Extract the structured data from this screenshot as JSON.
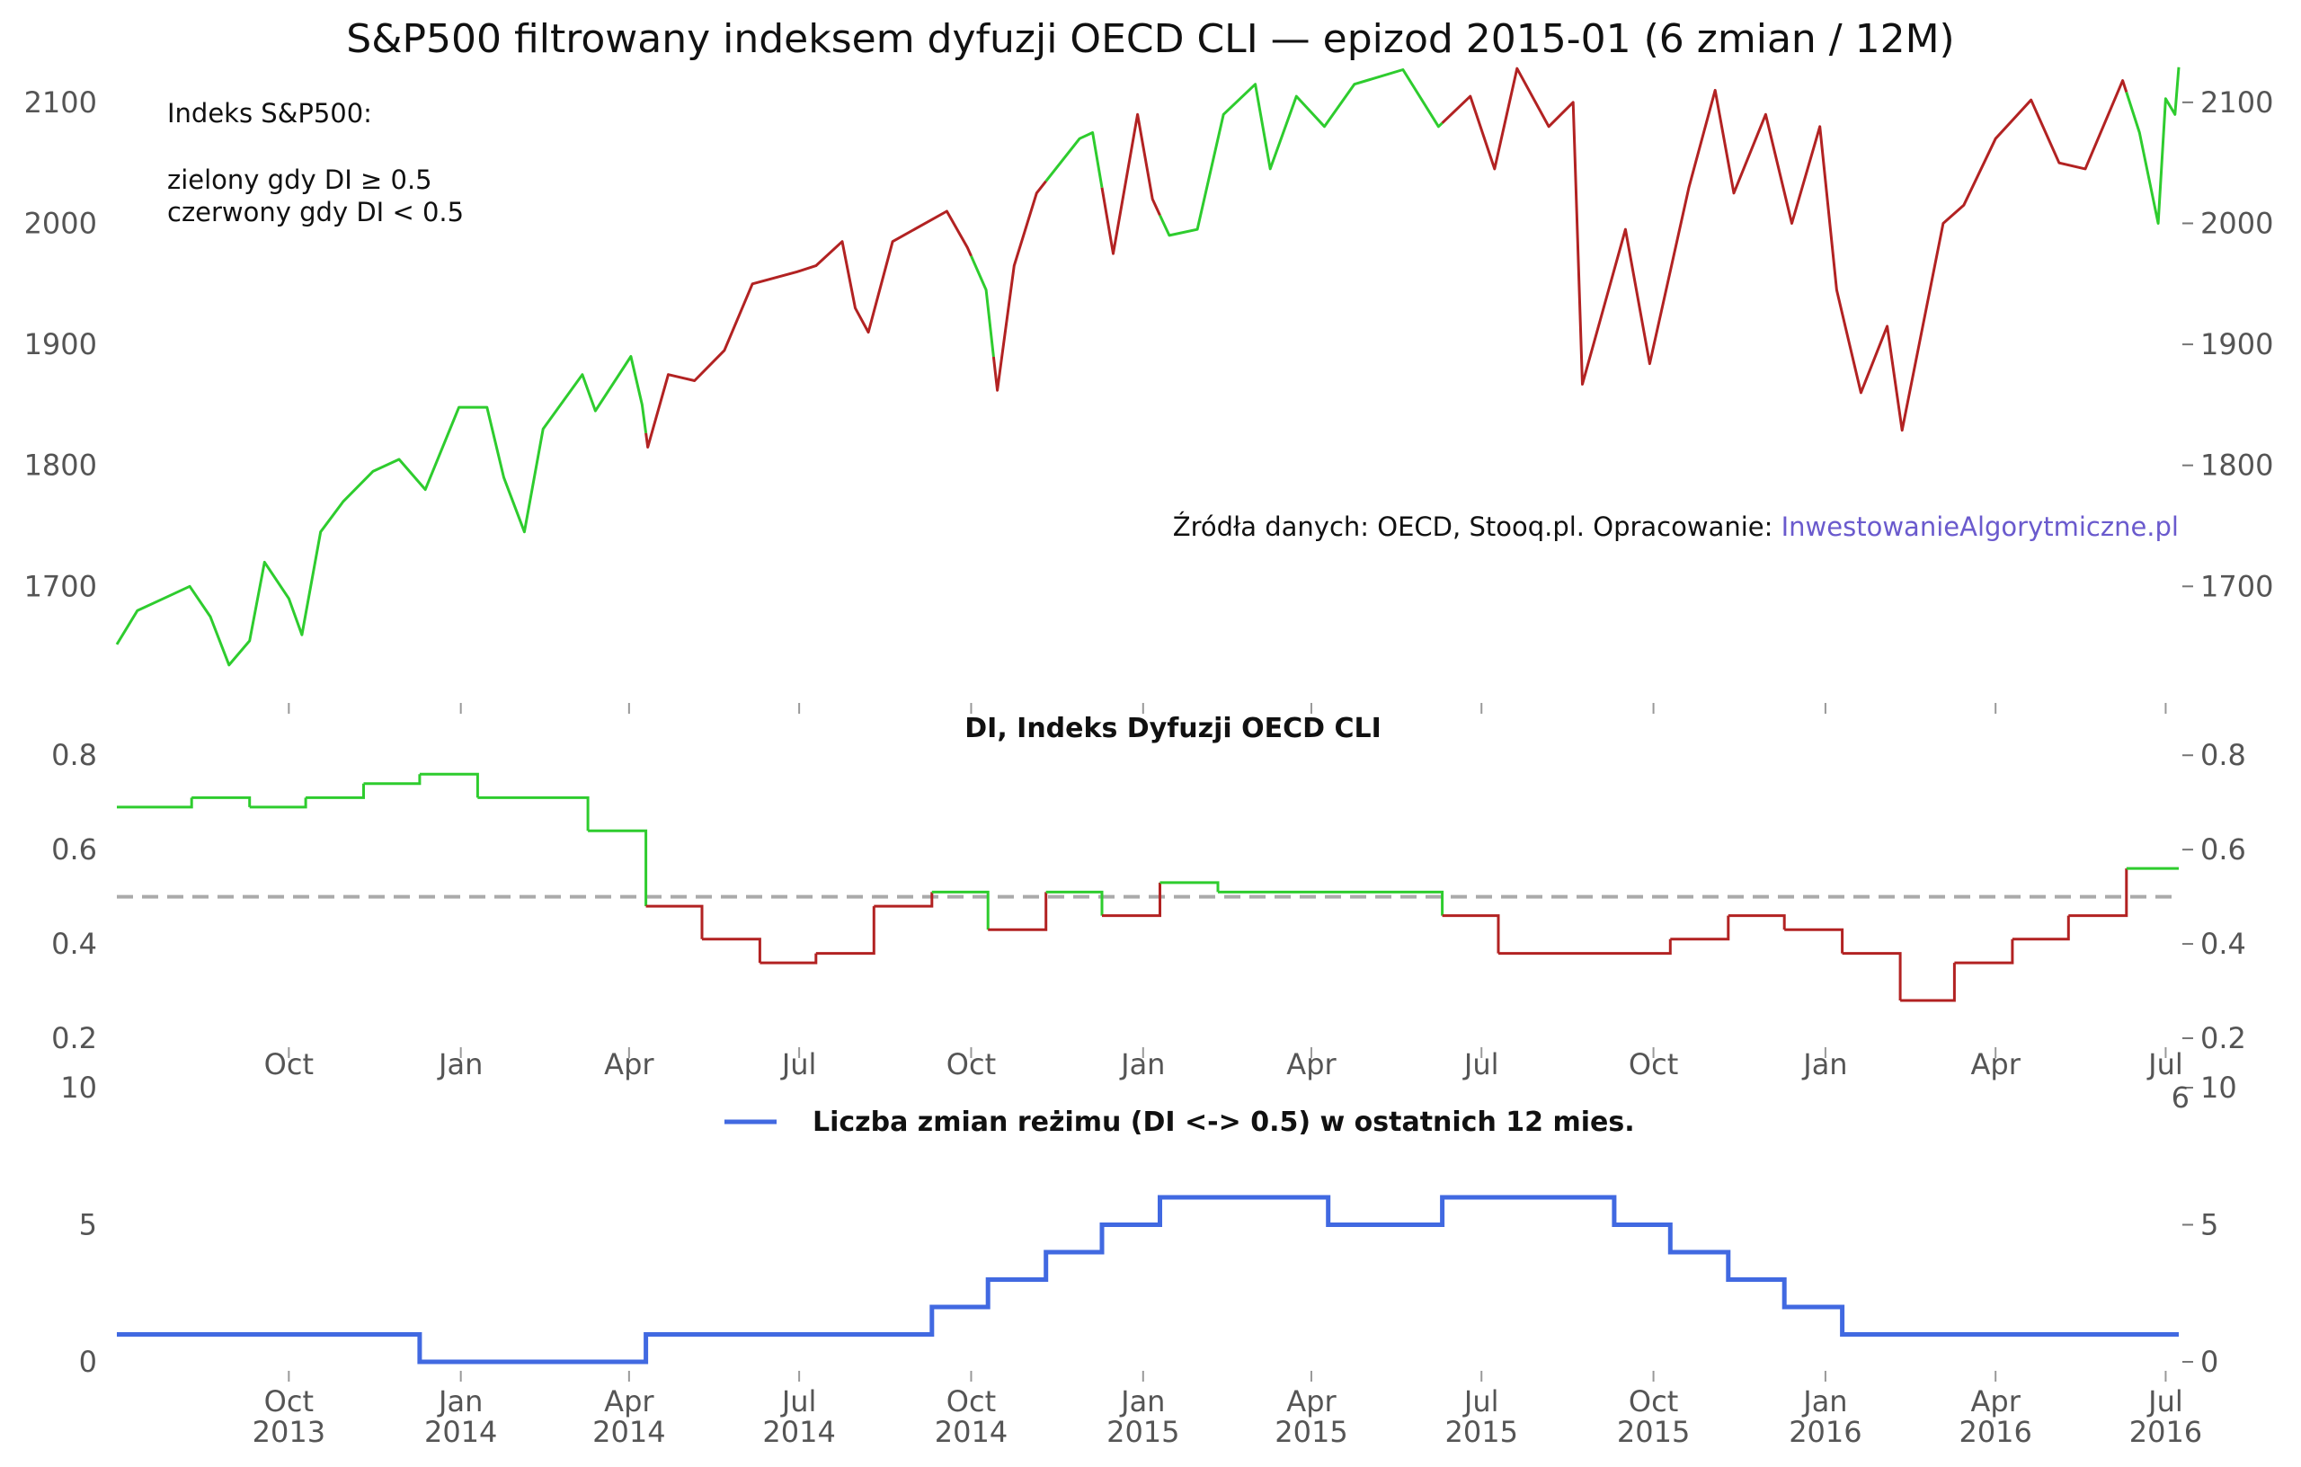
{
  "title": "S&P500 filtrowany indeksem dyfuzji OECD CLI — epizod 2015-01 (6 zmian / 12M)",
  "colors": {
    "green": "#2ecc2e",
    "red": "#b22222",
    "blue": "#4169e1",
    "grey": "#aaaaaa",
    "link": "#6a5acd"
  },
  "annotation": {
    "line1": "Indeks S&P500:",
    "line2": "zielony gdy DI ≥ 0.5",
    "line3": "czerwony gdy DI < 0.5"
  },
  "source": {
    "prefix": "Źródła danych: OECD, Stooq.pl. Opracowanie: ",
    "link": "InwestowanieAlgorytmiczne.pl"
  },
  "x_ticks_top": [
    "Oct",
    "Jan",
    "Apr",
    "Jul",
    "Oct",
    "Jan",
    "Apr",
    "Jul",
    "Oct",
    "Jan",
    "Apr",
    "Jul"
  ],
  "x_ticks_bottom": [
    {
      "m": "Oct",
      "y": "2013"
    },
    {
      "m": "Jan",
      "y": "2014"
    },
    {
      "m": "Apr",
      "y": "2014"
    },
    {
      "m": "Jul",
      "y": "2014"
    },
    {
      "m": "Oct",
      "y": "2014"
    },
    {
      "m": "Jan",
      "y": "2015"
    },
    {
      "m": "Apr",
      "y": "2015"
    },
    {
      "m": "Jul",
      "y": "2015"
    },
    {
      "m": "Oct",
      "y": "2015"
    },
    {
      "m": "Jan",
      "y": "2016"
    },
    {
      "m": "Apr",
      "y": "2016"
    },
    {
      "m": "Jul",
      "y": "2016"
    }
  ],
  "stray_label": "6",
  "chart_data": [
    {
      "type": "line",
      "name": "Indeks S&P500",
      "x_range": [
        "2013-07-01",
        "2016-07-08"
      ],
      "ylim": [
        1620,
        2140
      ],
      "y_ticks": [
        1700,
        1800,
        1900,
        2000,
        2100
      ],
      "points": [
        [
          "2013-07-01",
          1652
        ],
        [
          "2013-07-12",
          1680
        ],
        [
          "2013-07-26",
          1690
        ],
        [
          "2013-08-09",
          1700
        ],
        [
          "2013-08-20",
          1675
        ],
        [
          "2013-08-30",
          1635
        ],
        [
          "2013-09-10",
          1655
        ],
        [
          "2013-09-18",
          1720
        ],
        [
          "2013-10-01",
          1690
        ],
        [
          "2013-10-08",
          1660
        ],
        [
          "2013-10-18",
          1745
        ],
        [
          "2013-10-30",
          1770
        ],
        [
          "2013-11-15",
          1795
        ],
        [
          "2013-11-29",
          1805
        ],
        [
          "2013-12-13",
          1780
        ],
        [
          "2013-12-31",
          1848
        ],
        [
          "2014-01-15",
          1848
        ],
        [
          "2014-01-24",
          1790
        ],
        [
          "2014-02-04",
          1745
        ],
        [
          "2014-02-14",
          1830
        ],
        [
          "2014-03-07",
          1875
        ],
        [
          "2014-03-14",
          1845
        ],
        [
          "2014-04-02",
          1890
        ],
        [
          "2014-04-08",
          1850
        ],
        [
          "2014-04-11",
          1815
        ],
        [
          "2014-04-22",
          1875
        ],
        [
          "2014-05-06",
          1870
        ],
        [
          "2014-05-22",
          1895
        ],
        [
          "2014-06-06",
          1950
        ],
        [
          "2014-06-30",
          1960
        ],
        [
          "2014-07-10",
          1965
        ],
        [
          "2014-07-24",
          1985
        ],
        [
          "2014-07-31",
          1930
        ],
        [
          "2014-08-07",
          1910
        ],
        [
          "2014-08-20",
          1985
        ],
        [
          "2014-09-18",
          2010
        ],
        [
          "2014-09-29",
          1980
        ],
        [
          "2014-10-09",
          1945
        ],
        [
          "2014-10-15",
          1862
        ],
        [
          "2014-10-24",
          1965
        ],
        [
          "2014-11-05",
          2025
        ],
        [
          "2014-11-28",
          2070
        ],
        [
          "2014-12-05",
          2075
        ],
        [
          "2014-12-16",
          1975
        ],
        [
          "2014-12-29",
          2090
        ],
        [
          "2015-01-06",
          2020
        ],
        [
          "2015-01-15",
          1990
        ],
        [
          "2015-01-30",
          1995
        ],
        [
          "2015-02-13",
          2090
        ],
        [
          "2015-03-02",
          2115
        ],
        [
          "2015-03-10",
          2045
        ],
        [
          "2015-03-24",
          2105
        ],
        [
          "2015-04-08",
          2080
        ],
        [
          "2015-04-24",
          2115
        ],
        [
          "2015-05-20",
          2127
        ],
        [
          "2015-06-08",
          2080
        ],
        [
          "2015-06-25",
          2105
        ],
        [
          "2015-07-08",
          2045
        ],
        [
          "2015-07-20",
          2128
        ],
        [
          "2015-08-06",
          2080
        ],
        [
          "2015-08-19",
          2100
        ],
        [
          "2015-08-24",
          1867
        ],
        [
          "2015-09-16",
          1995
        ],
        [
          "2015-09-29",
          1884
        ],
        [
          "2015-10-20",
          2030
        ],
        [
          "2015-11-03",
          2110
        ],
        [
          "2015-11-13",
          2025
        ],
        [
          "2015-11-30",
          2090
        ],
        [
          "2015-12-14",
          2000
        ],
        [
          "2015-12-29",
          2080
        ],
        [
          "2016-01-07",
          1945
        ],
        [
          "2016-01-20",
          1860
        ],
        [
          "2016-02-03",
          1915
        ],
        [
          "2016-02-11",
          1829
        ],
        [
          "2016-02-24",
          1930
        ],
        [
          "2016-03-04",
          2000
        ],
        [
          "2016-03-15",
          2015
        ],
        [
          "2016-04-01",
          2070
        ],
        [
          "2016-04-20",
          2102
        ],
        [
          "2016-05-05",
          2050
        ],
        [
          "2016-05-19",
          2045
        ],
        [
          "2016-06-08",
          2118
        ],
        [
          "2016-06-17",
          2075
        ],
        [
          "2016-06-27",
          2000
        ],
        [
          "2016-07-01",
          2103
        ],
        [
          "2016-07-06",
          2090
        ],
        [
          "2016-07-08",
          2129
        ]
      ],
      "regime_segments": [
        {
          "from": "2013-07-01",
          "to": "2014-04-10",
          "regime": "green"
        },
        {
          "from": "2014-04-10",
          "to": "2014-10-01",
          "regime": "red"
        },
        {
          "from": "2014-10-01",
          "to": "2014-10-13",
          "regime": "green"
        },
        {
          "from": "2014-10-13",
          "to": "2014-11-10",
          "regime": "red"
        },
        {
          "from": "2014-11-10",
          "to": "2014-12-10",
          "regime": "green"
        },
        {
          "from": "2014-12-10",
          "to": "2015-01-10",
          "regime": "red"
        },
        {
          "from": "2015-01-10",
          "to": "2015-06-10",
          "regime": "green"
        },
        {
          "from": "2015-06-10",
          "to": "2016-06-10",
          "regime": "red"
        },
        {
          "from": "2016-06-10",
          "to": "2016-07-08",
          "regime": "green"
        }
      ]
    },
    {
      "type": "line",
      "title": "DI, Indeks Dyfuzji OECD CLI",
      "x_range": [
        "2013-07-01",
        "2016-07-08"
      ],
      "ylim": [
        0.2,
        0.85
      ],
      "y_ticks": [
        "0.2",
        "0.4",
        "0.6",
        "0.8"
      ],
      "threshold": 0.5,
      "steps": [
        [
          "2013-07-01",
          0.69
        ],
        [
          "2013-08-10",
          0.71
        ],
        [
          "2013-09-10",
          0.69
        ],
        [
          "2013-10-10",
          0.71
        ],
        [
          "2013-11-10",
          0.74
        ],
        [
          "2013-12-10",
          0.76
        ],
        [
          "2014-01-10",
          0.71
        ],
        [
          "2014-03-10",
          0.64
        ],
        [
          "2014-04-10",
          0.48
        ],
        [
          "2014-05-10",
          0.41
        ],
        [
          "2014-06-10",
          0.36
        ],
        [
          "2014-07-10",
          0.38
        ],
        [
          "2014-08-10",
          0.48
        ],
        [
          "2014-09-10",
          0.51
        ],
        [
          "2014-10-10",
          0.43
        ],
        [
          "2014-11-10",
          0.51
        ],
        [
          "2014-12-10",
          0.46
        ],
        [
          "2015-01-10",
          0.53
        ],
        [
          "2015-02-10",
          0.51
        ],
        [
          "2015-06-10",
          0.46
        ],
        [
          "2015-07-10",
          0.38
        ],
        [
          "2015-10-10",
          0.41
        ],
        [
          "2015-11-10",
          0.46
        ],
        [
          "2015-12-10",
          0.43
        ],
        [
          "2016-01-10",
          0.38
        ],
        [
          "2016-02-10",
          0.28
        ],
        [
          "2016-03-10",
          0.36
        ],
        [
          "2016-04-10",
          0.41
        ],
        [
          "2016-05-10",
          0.46
        ],
        [
          "2016-06-10",
          0.56
        ]
      ],
      "end": "2016-07-08"
    },
    {
      "type": "line",
      "name": "Liczba zmian reżimu (DI <-> 0.5) w ostatnich 12 mies.",
      "x_range": [
        "2013-07-01",
        "2016-07-08"
      ],
      "ylim": [
        0,
        10
      ],
      "y_ticks": [
        "0",
        "5",
        "10"
      ],
      "steps": [
        [
          "2013-07-01",
          1
        ],
        [
          "2013-12-10",
          0
        ],
        [
          "2014-04-10",
          1
        ],
        [
          "2014-09-10",
          2
        ],
        [
          "2014-10-10",
          3
        ],
        [
          "2014-11-10",
          4
        ],
        [
          "2014-12-10",
          5
        ],
        [
          "2015-01-10",
          6
        ],
        [
          "2015-04-10",
          5
        ],
        [
          "2015-06-10",
          6
        ],
        [
          "2015-09-10",
          5
        ],
        [
          "2015-10-10",
          4
        ],
        [
          "2015-11-10",
          3
        ],
        [
          "2015-12-10",
          2
        ],
        [
          "2016-01-10",
          1
        ]
      ],
      "end": "2016-07-08"
    }
  ]
}
